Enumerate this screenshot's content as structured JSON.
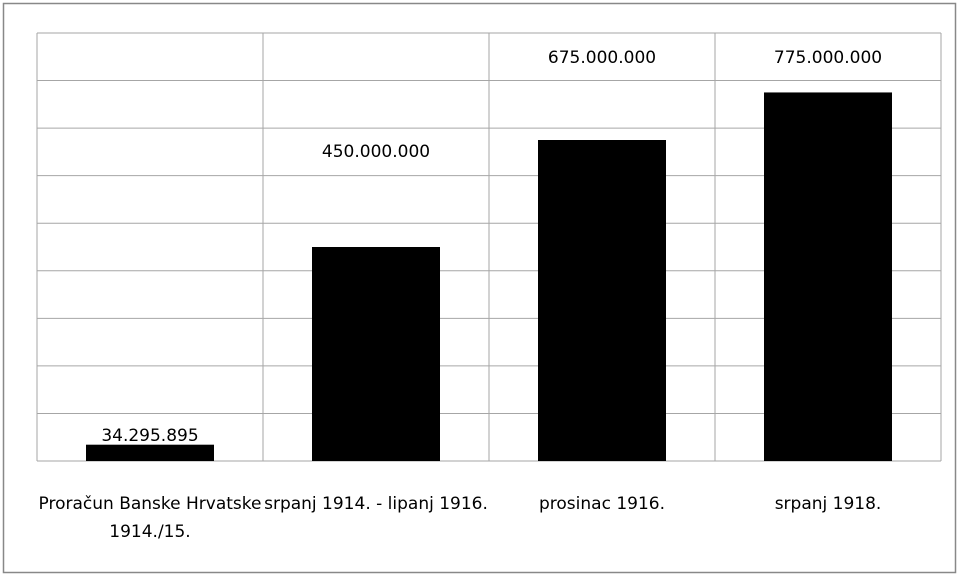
{
  "chart_data": {
    "type": "bar",
    "categories": [
      "Proračun Banske Hrvatske 1914./15.",
      "srpanj 1914. - lipanj 1916.",
      "prosinac 1916.",
      "srpanj 1918."
    ],
    "values": [
      34295895,
      450000000,
      675000000,
      775000000
    ],
    "value_labels": [
      "34.295.895",
      "450.000.000",
      "675.000.000",
      "775.000.000"
    ],
    "color": "#000000",
    "ylim": [
      0,
      900000000
    ],
    "yticks": [
      0,
      100000000,
      200000000,
      300000000,
      400000000,
      500000000,
      600000000,
      700000000,
      800000000,
      900000000
    ],
    "grid": true
  }
}
